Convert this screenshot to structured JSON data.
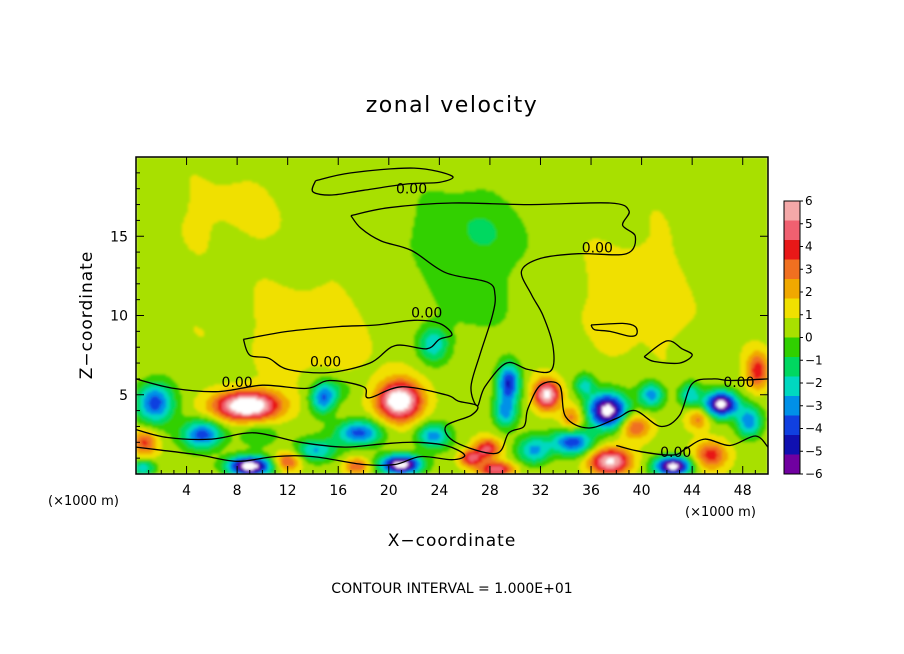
{
  "chart_data": {
    "type": "heatmap",
    "title": "zonal velocity",
    "xlabel": "X−coordinate",
    "ylabel": "Z−coordinate",
    "x_unit_left": "(×1000 m)",
    "x_unit_right": "(×1000 m)",
    "x_ticks": [
      4,
      8,
      12,
      16,
      20,
      24,
      28,
      32,
      36,
      40,
      44,
      48
    ],
    "y_ticks": [
      5,
      10,
      15
    ],
    "xlim": [
      0,
      50
    ],
    "ylim": [
      0,
      20
    ],
    "colorbar": {
      "ticks": [
        6,
        5,
        4,
        3,
        2,
        1,
        0,
        -1,
        -2,
        -3,
        -4,
        -5,
        -6
      ],
      "labels": [
        "6",
        "5",
        "4",
        "3",
        "2",
        "1",
        "0",
        "−1",
        "−2",
        "−3",
        "−4",
        "−5",
        "−6"
      ],
      "colors": [
        "#f4a8a8",
        "#f06070",
        "#e81818",
        "#f07020",
        "#f0a800",
        "#f0e000",
        "#a8e000",
        "#30d000",
        "#00d860",
        "#00d8c0",
        "#0090e8",
        "#1040e0",
        "#1010b0",
        "#7000a0"
      ]
    },
    "contour_label": "0.00",
    "contour_note": "CONTOUR INTERVAL = 1.000E+01",
    "blobs": [
      {
        "x": 8.8,
        "z": 4.3,
        "v": 7.5,
        "rx": 2.4,
        "rz": 0.9
      },
      {
        "x": 20.8,
        "z": 4.6,
        "v": 7.0,
        "rx": 1.7,
        "rz": 1.2
      },
      {
        "x": 32.5,
        "z": 5.0,
        "v": 5.8,
        "rx": 1.0,
        "rz": 0.9
      },
      {
        "x": 37.5,
        "z": 0.8,
        "v": 5.8,
        "rx": 1.6,
        "rz": 0.8
      },
      {
        "x": 27.8,
        "z": 1.6,
        "v": 4.0,
        "rx": 1.0,
        "rz": 0.6
      },
      {
        "x": 28.5,
        "z": 0.3,
        "v": 4.5,
        "rx": 1.4,
        "rz": 0.5
      },
      {
        "x": 26.5,
        "z": 1.0,
        "v": 4.0,
        "rx": 0.9,
        "rz": 0.5
      },
      {
        "x": 49.2,
        "z": 6.5,
        "v": 3.5,
        "rx": 0.9,
        "rz": 1.2
      },
      {
        "x": 45.5,
        "z": 1.2,
        "v": 3.5,
        "rx": 1.3,
        "rz": 0.9
      },
      {
        "x": 17.5,
        "z": 0.5,
        "v": 3.0,
        "rx": 1.0,
        "rz": 0.5
      },
      {
        "x": 0.7,
        "z": 2.0,
        "v": 3.0,
        "rx": 1.0,
        "rz": 0.8
      },
      {
        "x": 39.5,
        "z": 3.0,
        "v": 3.0,
        "rx": 1.2,
        "rz": 0.8
      },
      {
        "x": 44.5,
        "z": 3.5,
        "v": 2.5,
        "rx": 0.9,
        "rz": 0.7
      },
      {
        "x": 34.5,
        "z": 3.5,
        "v": 2.5,
        "rx": 0.9,
        "rz": 0.8
      },
      {
        "x": 12.0,
        "z": 0.8,
        "v": 3.0,
        "rx": 1.0,
        "rz": 0.6
      },
      {
        "x": 9.0,
        "z": 0.5,
        "v": -7.5,
        "rx": 1.7,
        "rz": 0.6
      },
      {
        "x": 21.0,
        "z": 0.6,
        "v": -7.5,
        "rx": 1.6,
        "rz": 0.6
      },
      {
        "x": 37.3,
        "z": 4.0,
        "v": -7.5,
        "rx": 1.5,
        "rz": 1.1
      },
      {
        "x": 46.3,
        "z": 4.4,
        "v": -7.2,
        "rx": 1.3,
        "rz": 0.8
      },
      {
        "x": 42.5,
        "z": 0.5,
        "v": -7.5,
        "rx": 1.4,
        "rz": 0.6
      },
      {
        "x": 1.5,
        "z": 4.5,
        "v": -4.5,
        "rx": 1.5,
        "rz": 1.3
      },
      {
        "x": 5.3,
        "z": 2.5,
        "v": -4.5,
        "rx": 1.6,
        "rz": 0.9
      },
      {
        "x": 14.8,
        "z": 4.8,
        "v": -4.0,
        "rx": 1.0,
        "rz": 1.0
      },
      {
        "x": 17.6,
        "z": 2.6,
        "v": -4.5,
        "rx": 1.8,
        "rz": 0.8
      },
      {
        "x": 14.2,
        "z": 1.5,
        "v": -3.0,
        "rx": 1.6,
        "rz": 0.7
      },
      {
        "x": 23.5,
        "z": 2.4,
        "v": -3.5,
        "rx": 1.3,
        "rz": 0.8
      },
      {
        "x": 29.5,
        "z": 5.8,
        "v": -4.8,
        "rx": 0.9,
        "rz": 1.2
      },
      {
        "x": 29.2,
        "z": 3.9,
        "v": -3.3,
        "rx": 0.9,
        "rz": 1.0
      },
      {
        "x": 23.5,
        "z": 8.2,
        "v": -2.8,
        "rx": 1.2,
        "rz": 1.1
      },
      {
        "x": 34.5,
        "z": 2.0,
        "v": -4.5,
        "rx": 1.6,
        "rz": 0.8
      },
      {
        "x": 31.5,
        "z": 1.5,
        "v": -3.5,
        "rx": 1.3,
        "rz": 0.9
      },
      {
        "x": 35.5,
        "z": 5.6,
        "v": -2.5,
        "rx": 0.8,
        "rz": 0.7
      },
      {
        "x": 40.8,
        "z": 5.0,
        "v": -3.5,
        "rx": 1.0,
        "rz": 0.8
      },
      {
        "x": 48.5,
        "z": 3.3,
        "v": -4.0,
        "rx": 1.0,
        "rz": 1.0
      },
      {
        "x": 43.8,
        "z": 5.0,
        "v": -3.0,
        "rx": 0.9,
        "rz": 0.8
      },
      {
        "x": 0.6,
        "z": 0.4,
        "v": -3.0,
        "rx": 1.0,
        "rz": 0.5
      },
      {
        "x": 9.8,
        "z": 2.5,
        "v": -1.5,
        "rx": 1.5,
        "rz": 0.8
      },
      {
        "x": 26.5,
        "z": 15.3,
        "v": -1.4,
        "rx": 5.0,
        "rz": 2.8
      },
      {
        "x": 26.5,
        "z": 11.0,
        "v": -1.0,
        "rx": 3.0,
        "rz": 2.5
      },
      {
        "x": 14.0,
        "z": 9.0,
        "v": 0.9,
        "rx": 5.0,
        "rz": 3.0
      },
      {
        "x": 40.0,
        "z": 11.5,
        "v": 0.7,
        "rx": 5.0,
        "rz": 4.0
      },
      {
        "x": 7.5,
        "z": 16.5,
        "v": 0.5,
        "rx": 5.0,
        "rz": 2.5
      },
      {
        "x": 16.0,
        "z": 5.3,
        "v": -1.2,
        "rx": 1.2,
        "rz": 0.8
      },
      {
        "x": 2.0,
        "z": 9.0,
        "v": 0.3,
        "rx": 3.0,
        "rz": 2.0
      }
    ],
    "contour_lines": [
      {
        "name": "upper-loop",
        "points": [
          [
            14.2,
            18.5
          ],
          [
            17,
            19
          ],
          [
            22,
            19.3
          ],
          [
            25,
            18.8
          ],
          [
            24,
            18.4
          ],
          [
            21.5,
            18.3
          ],
          [
            18,
            17.9
          ],
          [
            15.5,
            17.6
          ],
          [
            14,
            17.8
          ],
          [
            14.2,
            18.5
          ]
        ]
      },
      {
        "name": "plume",
        "points": [
          [
            17,
            16.3
          ],
          [
            20,
            16.8
          ],
          [
            25,
            17.1
          ],
          [
            31,
            17
          ],
          [
            37.5,
            17.1
          ],
          [
            39,
            16.6
          ],
          [
            38.5,
            15.7
          ],
          [
            39.5,
            15
          ],
          [
            38.8,
            13.9
          ],
          [
            35,
            13.9
          ],
          [
            32,
            13.6
          ],
          [
            30.5,
            12.8
          ],
          [
            31.3,
            11.3
          ],
          [
            32.2,
            10
          ],
          [
            33,
            8
          ],
          [
            32.8,
            6.5
          ],
          [
            31,
            6.6
          ],
          [
            29.3,
            7
          ],
          [
            27.6,
            5.5
          ],
          [
            27,
            4.3
          ],
          [
            26.5,
            5.5
          ],
          [
            27.2,
            7.5
          ],
          [
            28.2,
            10
          ],
          [
            28.4,
            11.3
          ],
          [
            27.8,
            12.1
          ],
          [
            24.5,
            12.7
          ],
          [
            21.8,
            14.1
          ],
          [
            19.4,
            14.7
          ],
          [
            17.8,
            15.5
          ],
          [
            17,
            16.3
          ]
        ]
      },
      {
        "name": "left-strip",
        "points": [
          [
            8.5,
            8.5
          ],
          [
            12,
            9
          ],
          [
            16,
            9.3
          ],
          [
            19,
            9.4
          ],
          [
            22,
            9.7
          ],
          [
            24,
            9.5
          ],
          [
            25,
            8.8
          ],
          [
            24,
            8.5
          ],
          [
            23,
            7.9
          ],
          [
            20.5,
            8.1
          ],
          [
            18.5,
            7
          ],
          [
            15.2,
            6.4
          ],
          [
            12,
            6.6
          ],
          [
            10.5,
            7.3
          ],
          [
            9,
            7.5
          ],
          [
            8.5,
            8.5
          ]
        ]
      },
      {
        "name": "lower-front",
        "points": [
          [
            0,
            6
          ],
          [
            3,
            5.4
          ],
          [
            6.5,
            5.2
          ],
          [
            10,
            5.6
          ],
          [
            13.5,
            5.4
          ],
          [
            15.3,
            5.9
          ],
          [
            18,
            5.5
          ],
          [
            18.4,
            4.8
          ],
          [
            21,
            5.5
          ],
          [
            24.5,
            5
          ],
          [
            25.5,
            4.6
          ],
          [
            27,
            4.3
          ],
          [
            26.5,
            3.7
          ],
          [
            24.5,
            3
          ],
          [
            25.3,
            2
          ],
          [
            28.5,
            1.3
          ],
          [
            29.5,
            2.6
          ],
          [
            30.7,
            3
          ],
          [
            31,
            4.1
          ],
          [
            32,
            5.6
          ],
          [
            33.5,
            5.6
          ],
          [
            34,
            3.6
          ],
          [
            35.8,
            2.9
          ],
          [
            38,
            3.5
          ],
          [
            39.5,
            4
          ],
          [
            41.5,
            3
          ],
          [
            43,
            3.7
          ],
          [
            44,
            5.7
          ],
          [
            45.7,
            6
          ],
          [
            47,
            5.9
          ],
          [
            50,
            6
          ]
        ]
      },
      {
        "name": "mid-band",
        "points": [
          [
            0,
            2.8
          ],
          [
            2.5,
            2.3
          ],
          [
            6,
            2.2
          ],
          [
            9.3,
            2.6
          ],
          [
            13,
            2
          ],
          [
            16.5,
            1.7
          ],
          [
            19.5,
            1.9
          ],
          [
            22,
            2
          ],
          [
            24.5,
            1.8
          ],
          [
            26,
            1.2
          ],
          [
            25,
            0.9
          ],
          [
            22.5,
            1.1
          ],
          [
            20.5,
            0.6
          ],
          [
            18,
            0.6
          ],
          [
            14,
            1.1
          ],
          [
            11,
            1.1
          ],
          [
            8,
            0.8
          ],
          [
            5,
            1.2
          ],
          [
            2,
            1.5
          ],
          [
            0,
            1.7
          ]
        ]
      },
      {
        "name": "east-pocket",
        "points": [
          [
            36,
            9.4
          ],
          [
            38.5,
            9.5
          ],
          [
            39.5,
            9.3
          ],
          [
            39.6,
            8.8
          ],
          [
            39,
            8.7
          ],
          [
            37.5,
            9
          ],
          [
            36.3,
            9.1
          ],
          [
            36,
            9.4
          ]
        ]
      },
      {
        "name": "east-lobe",
        "points": [
          [
            40.2,
            7.4
          ],
          [
            42,
            8.4
          ],
          [
            43.2,
            7.9
          ],
          [
            44,
            7.5
          ],
          [
            43,
            7
          ],
          [
            41,
            7.1
          ],
          [
            40.2,
            7.4
          ]
        ]
      },
      {
        "name": "low-east",
        "points": [
          [
            38,
            1.8
          ],
          [
            40,
            1.4
          ],
          [
            42.5,
            1.2
          ],
          [
            43.5,
            1.6
          ],
          [
            45,
            2.2
          ],
          [
            47,
            1.8
          ],
          [
            49,
            2.4
          ],
          [
            50,
            1.7
          ]
        ]
      }
    ],
    "contour_labels": [
      {
        "x": 21.8,
        "z": 18.0
      },
      {
        "x": 36.5,
        "z": 14.3
      },
      {
        "x": 23.0,
        "z": 10.2
      },
      {
        "x": 15.0,
        "z": 7.1
      },
      {
        "x": 8.0,
        "z": 5.8
      },
      {
        "x": 42.7,
        "z": 1.4
      },
      {
        "x": 47.7,
        "z": 5.8
      }
    ]
  }
}
